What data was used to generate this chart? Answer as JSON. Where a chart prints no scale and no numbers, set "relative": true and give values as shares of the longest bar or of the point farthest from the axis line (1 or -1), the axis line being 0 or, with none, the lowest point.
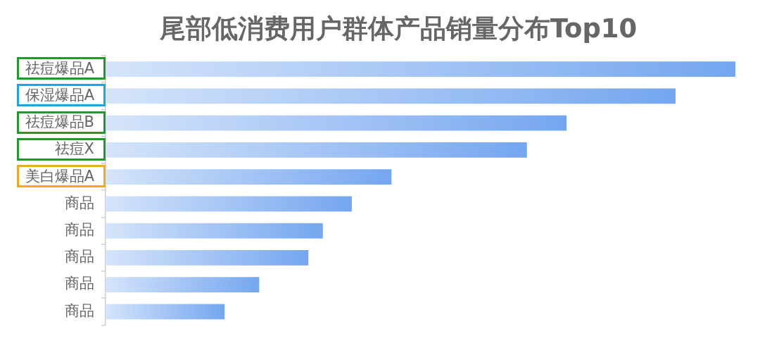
{
  "chart_data": {
    "type": "bar",
    "orientation": "horizontal",
    "relative": true,
    "title": "尾部低消费用户群体产品销量分布Top10",
    "categories": [
      "祛痘爆品A",
      "保湿爆品A",
      "祛痘爆品B",
      "祛痘X",
      "美白爆品A",
      "商品",
      "商品",
      "商品",
      "商品",
      "商品"
    ],
    "values": [
      1,
      0.905,
      0.732,
      0.669,
      0.454,
      0.391,
      0.345,
      0.322,
      0.244,
      0.189
    ],
    "color": "#74a6ef"
  }
}
